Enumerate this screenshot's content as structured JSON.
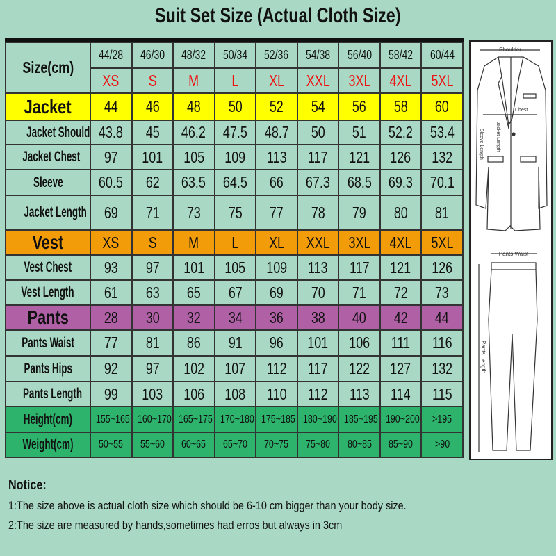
{
  "title": "Suit Set Size (Actual Cloth Size)",
  "size_label": "Size(cm)",
  "numeric_sizes": [
    "44/28",
    "46/30",
    "48/32",
    "50/34",
    "52/36",
    "54/38",
    "56/40",
    "58/42",
    "60/44"
  ],
  "letter_sizes": [
    "XS",
    "S",
    "M",
    "L",
    "XL",
    "XXL",
    "3XL",
    "4XL",
    "5XL"
  ],
  "rows": [
    {
      "label": "Jacket",
      "style": "yellow",
      "big": true,
      "values": [
        "44",
        "46",
        "48",
        "50",
        "52",
        "54",
        "56",
        "58",
        "60"
      ]
    },
    {
      "label": "Jacket Shoulder",
      "values": [
        "43.8",
        "45",
        "46.2",
        "47.5",
        "48.7",
        "50",
        "51",
        "52.2",
        "53.4"
      ]
    },
    {
      "label": "Jacket Chest",
      "values": [
        "97",
        "101",
        "105",
        "109",
        "113",
        "117",
        "121",
        "126",
        "132"
      ]
    },
    {
      "label": "Sleeve",
      "values": [
        "60.5",
        "62",
        "63.5",
        "64.5",
        "66",
        "67.3",
        "68.5",
        "69.3",
        "70.1"
      ]
    },
    {
      "label": "Jacket Length",
      "values": [
        "69",
        "71",
        "73",
        "75",
        "77",
        "78",
        "79",
        "80",
        "81"
      ]
    },
    {
      "label": "Vest",
      "style": "orange",
      "big": true,
      "values": [
        "XS",
        "S",
        "M",
        "L",
        "XL",
        "XXL",
        "3XL",
        "4XL",
        "5XL"
      ]
    },
    {
      "label": "Vest Chest",
      "values": [
        "93",
        "97",
        "101",
        "105",
        "109",
        "113",
        "117",
        "121",
        "126"
      ]
    },
    {
      "label": "Vest Length",
      "values": [
        "61",
        "63",
        "65",
        "67",
        "69",
        "70",
        "71",
        "72",
        "73"
      ]
    },
    {
      "label": "Pants",
      "style": "purple",
      "big": true,
      "values": [
        "28",
        "30",
        "32",
        "34",
        "36",
        "38",
        "40",
        "42",
        "44"
      ]
    },
    {
      "label": "Pants Waist",
      "values": [
        "77",
        "81",
        "86",
        "91",
        "96",
        "101",
        "106",
        "111",
        "116"
      ]
    },
    {
      "label": "Pants Hips",
      "values": [
        "92",
        "97",
        "102",
        "107",
        "112",
        "117",
        "122",
        "127",
        "132"
      ]
    },
    {
      "label": "Pants Length",
      "values": [
        "99",
        "103",
        "106",
        "108",
        "110",
        "112",
        "113",
        "114",
        "115"
      ]
    },
    {
      "label": "Height(cm)",
      "style": "green",
      "small": true,
      "values": [
        "155~165",
        "160~170",
        "165~175",
        "170~180",
        "175~185",
        "180~190",
        "185~195",
        "190~200",
        ">195"
      ]
    },
    {
      "label": "Weight(cm)",
      "style": "green",
      "small": true,
      "values": [
        "50~55",
        "55~60",
        "60~65",
        "65~70",
        "70~75",
        "75~80",
        "80~85",
        "85~90",
        ">90"
      ]
    }
  ],
  "diagram": {
    "shoulder": "Shoulder",
    "chest": "Chest",
    "sleeve_length": "Sleeve Length",
    "jacket_length": "Jacket Length",
    "pants_waist": "Pants Waist",
    "pants_length": "Pants Length"
  },
  "notice": {
    "title": "Notice:",
    "lines": [
      "1:The size above is actual cloth size which should be 6-10 cm bigger than your body size.",
      "2:The size are measured by hands,sometimes had erros but always in 3cm"
    ]
  },
  "colors": {
    "background": "#a9d9c5",
    "jacket": "#ffff00",
    "vest": "#f39c0a",
    "pants": "#b061a6",
    "body_fit": "#2db36b",
    "letter_size": "#ee1111"
  }
}
